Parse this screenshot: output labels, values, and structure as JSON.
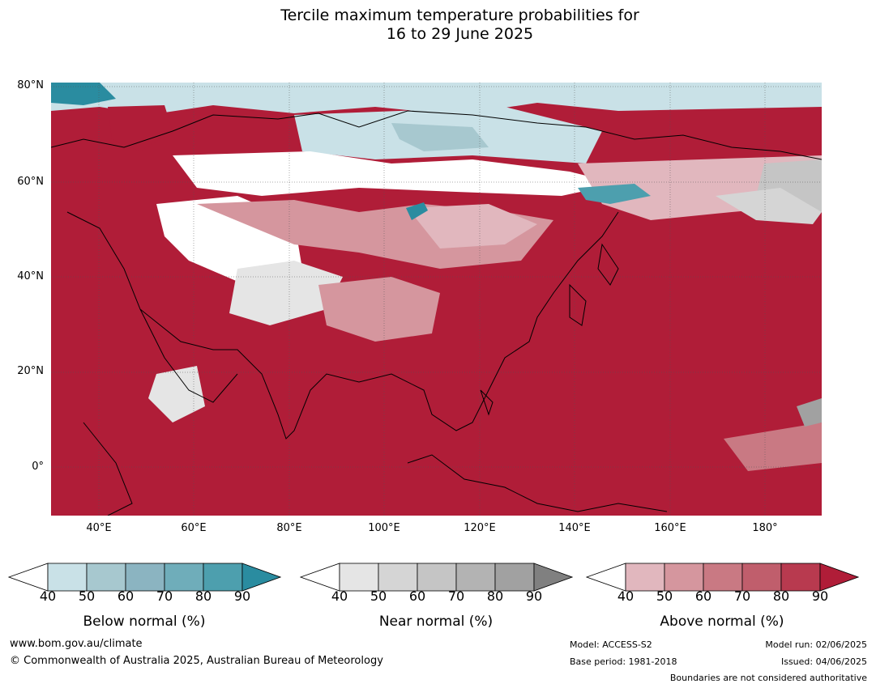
{
  "title": {
    "line1": "Tercile maximum temperature probabilities for",
    "line2": "16 to 29 June 2025"
  },
  "map": {
    "lat_labels": [
      "80°N",
      "60°N",
      "40°N",
      "20°N",
      "0°"
    ],
    "lon_labels": [
      "40°E",
      "60°E",
      "80°E",
      "100°E",
      "120°E",
      "140°E",
      "160°E",
      "180°"
    ],
    "lat_range": [
      -10,
      80
    ],
    "lon_range": [
      30,
      192
    ]
  },
  "legends": [
    {
      "caption": "Below normal (%)",
      "ticks": [
        "40",
        "50",
        "60",
        "70",
        "80",
        "90"
      ],
      "colors": [
        "#ffffff",
        "#c9e1e7",
        "#a7c8cf",
        "#8bb4c1",
        "#6fadba",
        "#4d9fae",
        "#2a8ca0"
      ]
    },
    {
      "caption": "Near normal (%)",
      "ticks": [
        "40",
        "50",
        "60",
        "70",
        "80",
        "90"
      ],
      "colors": [
        "#ffffff",
        "#e5e5e5",
        "#d5d5d5",
        "#c5c5c5",
        "#b3b3b3",
        "#a1a1a1",
        "#808080"
      ]
    },
    {
      "caption": "Above normal (%)",
      "ticks": [
        "40",
        "50",
        "60",
        "70",
        "80",
        "90"
      ],
      "colors": [
        "#ffffff",
        "#e1b7be",
        "#d5969e",
        "#c97983",
        "#c05e6c",
        "#b83a4f",
        "#b01d38"
      ]
    }
  ],
  "footer": {
    "website": "www.bom.gov.au/climate",
    "copyright": "© Commonwealth of Australia 2025, Australian Bureau of Meteorology",
    "model": "Model: ACCESS-S2",
    "base_period": "Base period: 1981-2018",
    "model_run": "Model run: 02/06/2025",
    "issued": "Issued: 04/06/2025",
    "disclaimer": "Boundaries are not considered authoritative"
  }
}
